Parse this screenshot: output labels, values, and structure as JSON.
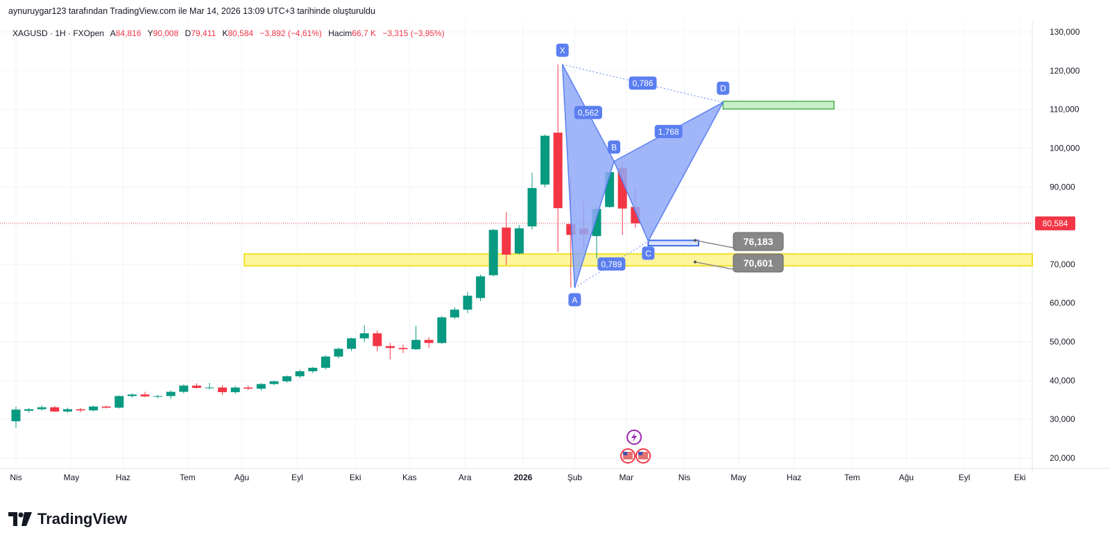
{
  "attribution": "aynuruygar123 tarafından TradingView.com ile Mar 14, 2026 13:09 UTC+3 tarihinde oluşturuldu",
  "legend": {
    "symbol": "XAGUSD · 1H · FXOpen",
    "open_label": "A",
    "open": "84,816",
    "high_label": "Y",
    "high": "90,008",
    "low_label": "D",
    "low": "79,411",
    "close_label": "K",
    "close": "80,584",
    "change": "−3,892 (−4,61%)",
    "volume_label": "Hacim",
    "volume": "66,7 K",
    "volume_change": "−3,315 (−3,95%)"
  },
  "current_price_tag": "80,584",
  "footer": {
    "brand": "TradingView"
  },
  "colors": {
    "up": "#089981",
    "down": "#f23645",
    "pattern": "#8fa9f7",
    "pattern_stroke": "#5b7ff0",
    "zone_yellow": "#fff59d",
    "zone_yellow_border": "#f2e02a",
    "zone_green": "#c8efc8",
    "zone_green_border": "#4caf50",
    "callout": "#888888"
  },
  "chart_data": {
    "type": "candlestick",
    "title": "",
    "xlabel": "",
    "ylabel": "",
    "ylim": [
      17000,
      133000
    ],
    "y_ticks": [
      "130,000",
      "120,000",
      "110,000",
      "100,000",
      "90,000",
      "80,000",
      "70,000",
      "60,000",
      "50,000",
      "40,000",
      "30,000",
      "20,000"
    ],
    "y_tick_values": [
      130000,
      120000,
      110000,
      100000,
      90000,
      80000,
      70000,
      60000,
      50000,
      40000,
      30000,
      20000
    ],
    "x_ticks": [
      {
        "label": "Nis",
        "idx": 0,
        "bold": false
      },
      {
        "label": "May",
        "idx": 4.3,
        "bold": false
      },
      {
        "label": "Haz",
        "idx": 8.3,
        "bold": false
      },
      {
        "label": "Tem",
        "idx": 13.3,
        "bold": false
      },
      {
        "label": "Ağu",
        "idx": 17.5,
        "bold": false
      },
      {
        "label": "Eyl",
        "idx": 21.8,
        "bold": false
      },
      {
        "label": "Eki",
        "idx": 26.3,
        "bold": false
      },
      {
        "label": "Kas",
        "idx": 30.5,
        "bold": false
      },
      {
        "label": "Ara",
        "idx": 34.8,
        "bold": false
      },
      {
        "label": "2026",
        "idx": 39.3,
        "bold": true
      },
      {
        "label": "Şub",
        "idx": 43.3,
        "bold": false
      },
      {
        "label": "Mar",
        "idx": 47.3,
        "bold": false
      },
      {
        "label": "Nis",
        "idx": 51.8,
        "bold": false
      },
      {
        "label": "May",
        "idx": 56.0,
        "bold": false
      },
      {
        "label": "Haz",
        "idx": 60.3,
        "bold": false
      },
      {
        "label": "Tem",
        "idx": 64.8,
        "bold": false
      },
      {
        "label": "Ağu",
        "idx": 69.0,
        "bold": false
      },
      {
        "label": "Eyl",
        "idx": 73.5,
        "bold": false
      },
      {
        "label": "Eki",
        "idx": 77.8,
        "bold": false
      }
    ],
    "candles": [
      {
        "o": 29500,
        "h": 33300,
        "l": 27800,
        "c": 32500
      },
      {
        "o": 32200,
        "h": 32900,
        "l": 31700,
        "c": 32600
      },
      {
        "o": 32600,
        "h": 33600,
        "l": 32200,
        "c": 33100
      },
      {
        "o": 33100,
        "h": 33400,
        "l": 31900,
        "c": 32000
      },
      {
        "o": 32000,
        "h": 33000,
        "l": 31700,
        "c": 32600
      },
      {
        "o": 32600,
        "h": 32900,
        "l": 31800,
        "c": 32300
      },
      {
        "o": 32300,
        "h": 33500,
        "l": 32000,
        "c": 33300
      },
      {
        "o": 33300,
        "h": 33500,
        "l": 32800,
        "c": 33000
      },
      {
        "o": 33000,
        "h": 36200,
        "l": 32800,
        "c": 36000
      },
      {
        "o": 36000,
        "h": 36700,
        "l": 35600,
        "c": 36400
      },
      {
        "o": 36400,
        "h": 37100,
        "l": 35700,
        "c": 35900
      },
      {
        "o": 35900,
        "h": 36300,
        "l": 35400,
        "c": 36000
      },
      {
        "o": 36000,
        "h": 37500,
        "l": 35300,
        "c": 37100
      },
      {
        "o": 37100,
        "h": 39000,
        "l": 36700,
        "c": 38700
      },
      {
        "o": 38700,
        "h": 39300,
        "l": 37900,
        "c": 38100
      },
      {
        "o": 38100,
        "h": 39400,
        "l": 37700,
        "c": 38200
      },
      {
        "o": 38200,
        "h": 38800,
        "l": 36300,
        "c": 37000
      },
      {
        "o": 37000,
        "h": 38600,
        "l": 36600,
        "c": 38200
      },
      {
        "o": 38200,
        "h": 38700,
        "l": 37600,
        "c": 37900
      },
      {
        "o": 37900,
        "h": 39300,
        "l": 37400,
        "c": 39100
      },
      {
        "o": 39100,
        "h": 40000,
        "l": 38800,
        "c": 39800
      },
      {
        "o": 39800,
        "h": 41300,
        "l": 39500,
        "c": 41100
      },
      {
        "o": 41100,
        "h": 42800,
        "l": 40600,
        "c": 42400
      },
      {
        "o": 42400,
        "h": 43500,
        "l": 41900,
        "c": 43300
      },
      {
        "o": 43300,
        "h": 46500,
        "l": 42900,
        "c": 46200
      },
      {
        "o": 46200,
        "h": 48500,
        "l": 45700,
        "c": 48200
      },
      {
        "o": 48200,
        "h": 51100,
        "l": 47600,
        "c": 50900
      },
      {
        "o": 50900,
        "h": 54300,
        "l": 49900,
        "c": 52200
      },
      {
        "o": 52200,
        "h": 52900,
        "l": 47500,
        "c": 48900
      },
      {
        "o": 48900,
        "h": 49700,
        "l": 45500,
        "c": 48400
      },
      {
        "o": 48400,
        "h": 49300,
        "l": 47100,
        "c": 48100
      },
      {
        "o": 48100,
        "h": 54100,
        "l": 47900,
        "c": 50500
      },
      {
        "o": 50500,
        "h": 51200,
        "l": 48400,
        "c": 49700
      },
      {
        "o": 49700,
        "h": 56700,
        "l": 49400,
        "c": 56300
      },
      {
        "o": 56300,
        "h": 58900,
        "l": 55900,
        "c": 58300
      },
      {
        "o": 58300,
        "h": 62900,
        "l": 57400,
        "c": 61900
      },
      {
        "o": 61300,
        "h": 67400,
        "l": 60500,
        "c": 66900
      },
      {
        "o": 67200,
        "h": 79100,
        "l": 66900,
        "c": 78900
      },
      {
        "o": 79500,
        "h": 83500,
        "l": 69800,
        "c": 72500
      },
      {
        "o": 72800,
        "h": 80100,
        "l": 72500,
        "c": 79300
      },
      {
        "o": 79800,
        "h": 93600,
        "l": 79000,
        "c": 89700
      },
      {
        "o": 90600,
        "h": 103500,
        "l": 89900,
        "c": 103200
      },
      {
        "o": 104000,
        "h": 121600,
        "l": 73200,
        "c": 84500
      },
      {
        "o": 80400,
        "h": 92300,
        "l": 64000,
        "c": 77600
      },
      {
        "o": 79200,
        "h": 86300,
        "l": 73700,
        "c": 77700
      },
      {
        "o": 77300,
        "h": 84800,
        "l": 71500,
        "c": 84300
      },
      {
        "o": 84800,
        "h": 94100,
        "l": 84600,
        "c": 93800
      },
      {
        "o": 94800,
        "h": 96500,
        "l": 77600,
        "c": 84400
      },
      {
        "o": 84816,
        "h": 90008,
        "l": 79411,
        "c": 80584
      }
    ],
    "pattern": {
      "name": "XABCD",
      "points": [
        {
          "label": "X",
          "idx": 42.35,
          "price": 121600
        },
        {
          "label": "A",
          "idx": 43.3,
          "price": 64000
        },
        {
          "label": "B",
          "idx": 46.35,
          "price": 96600
        },
        {
          "label": "C",
          "idx": 49.0,
          "price": 76000
        },
        {
          "label": "D",
          "idx": 54.8,
          "price": 111800
        }
      ],
      "ratios": [
        {
          "label": "0,562",
          "from": "X",
          "to": "B"
        },
        {
          "label": "0,789",
          "from": "A",
          "to": "C"
        },
        {
          "label": "1,768",
          "from": "B",
          "to": "D"
        },
        {
          "label": "0,786",
          "from": "X",
          "to": "D"
        }
      ]
    },
    "zones": [
      {
        "name": "support-zone",
        "from_idx": 17.7,
        "to_idx": 80,
        "low": 69600,
        "high": 72700,
        "color": "yellow"
      },
      {
        "name": "target-zone",
        "from_idx": 54.8,
        "to_idx": 63.4,
        "low": 110100,
        "high": 112100,
        "color": "green"
      },
      {
        "name": "c-zone",
        "from_idx": 49.0,
        "to_idx": 52.9,
        "low": 74800,
        "high": 76183,
        "color": "blue"
      }
    ],
    "callouts": [
      {
        "text": "76,183",
        "idx": 52.9,
        "price": 76183
      },
      {
        "text": "70,601",
        "idx": 52.9,
        "price": 70601
      }
    ],
    "last_price": 80584
  }
}
